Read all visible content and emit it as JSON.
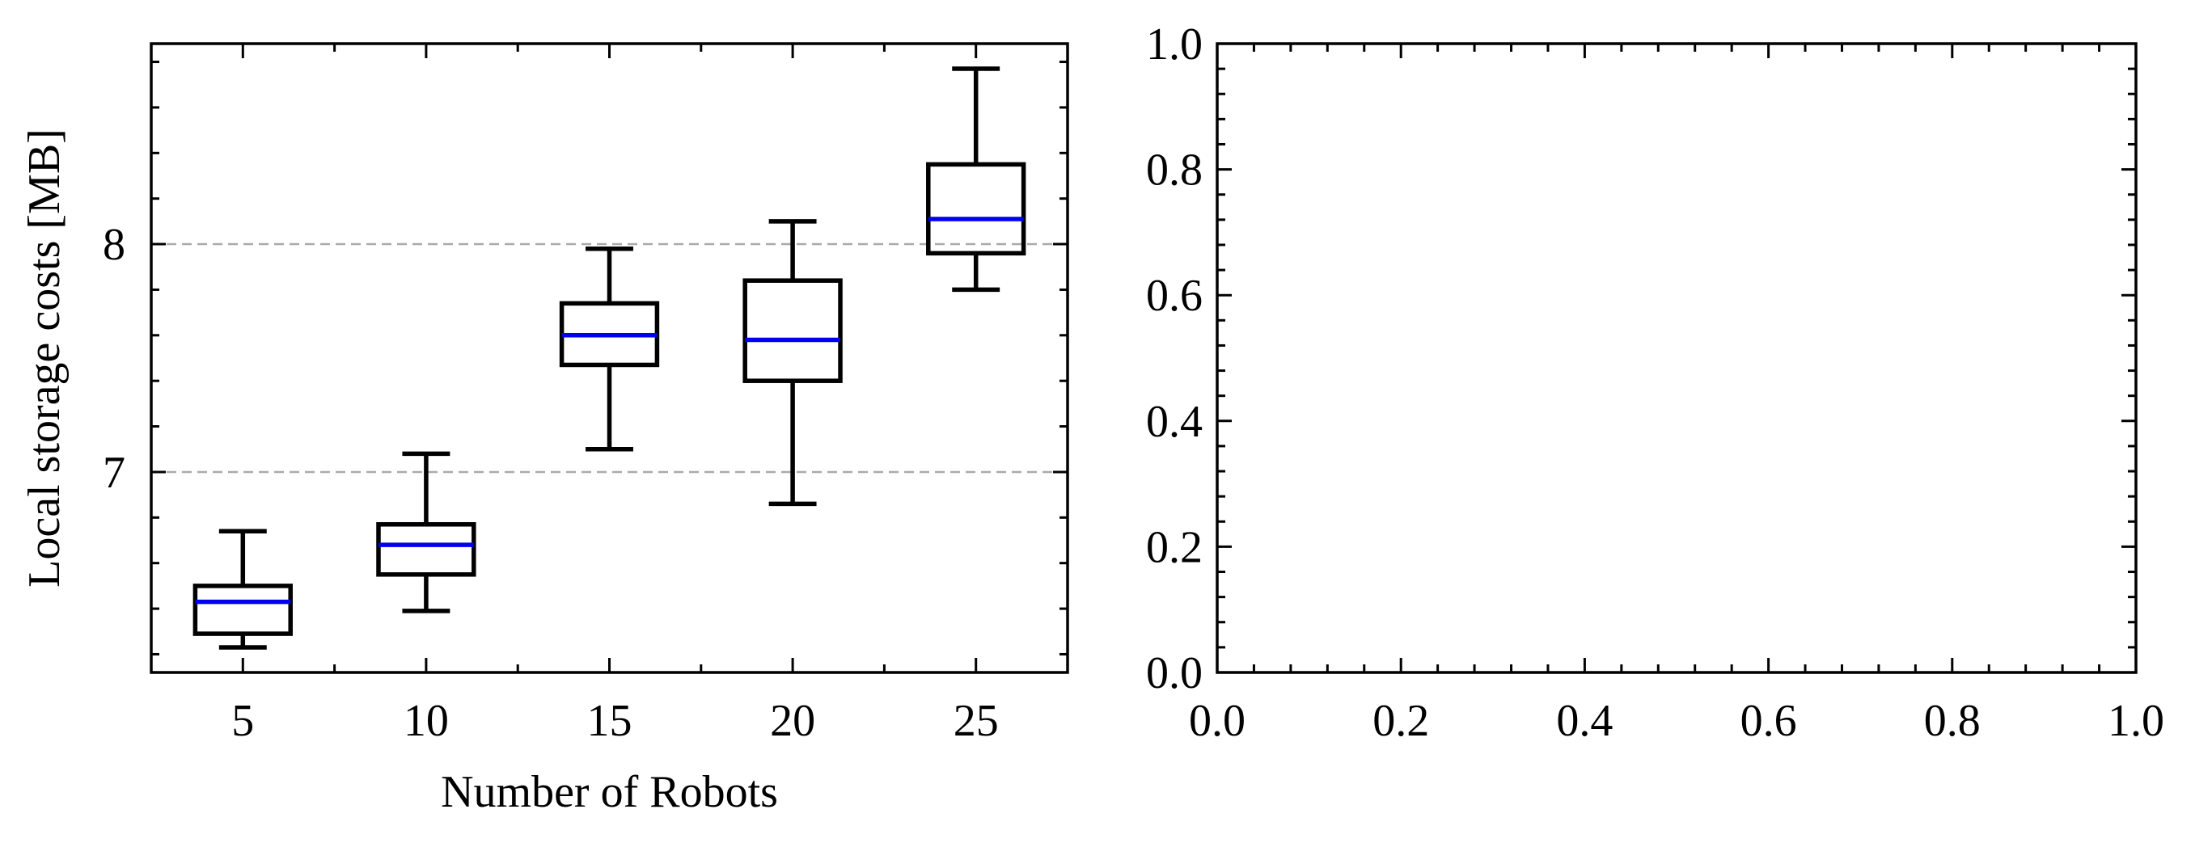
{
  "chart_data": [
    {
      "type": "box",
      "xlabel": "Number of Robots",
      "ylabel": "Local storage costs [MB]",
      "categories": [
        "5",
        "10",
        "15",
        "20",
        "25"
      ],
      "x": [
        5,
        10,
        15,
        20,
        25
      ],
      "xlim": [
        2.5,
        27.5
      ],
      "ylim": [
        6.12,
        8.88
      ],
      "yticks": [
        7,
        8
      ],
      "ytick_labels": [
        "7",
        "8"
      ],
      "grid": "horizontal dashed at major y ticks",
      "boxes": [
        {
          "x": 5,
          "whisker_low": 6.23,
          "q1": 6.29,
          "median": 6.43,
          "q3": 6.5,
          "whisker_high": 6.74
        },
        {
          "x": 10,
          "whisker_low": 6.39,
          "q1": 6.55,
          "median": 6.68,
          "q3": 6.77,
          "whisker_high": 7.08
        },
        {
          "x": 15,
          "whisker_low": 7.1,
          "q1": 7.47,
          "median": 7.6,
          "q3": 7.74,
          "whisker_high": 7.98
        },
        {
          "x": 20,
          "whisker_low": 6.86,
          "q1": 7.4,
          "median": 7.58,
          "q3": 7.84,
          "whisker_high": 8.1
        },
        {
          "x": 25,
          "whisker_low": 7.8,
          "q1": 7.96,
          "median": 8.11,
          "q3": 8.35,
          "whisker_high": 8.77
        }
      ],
      "colors": {
        "box": "#000000",
        "median": "#0000ee",
        "grid": "#aaaaaa"
      }
    },
    {
      "type": "empty",
      "xlim": [
        0.0,
        1.0
      ],
      "ylim": [
        0.0,
        1.0
      ],
      "xtick_labels": [
        "0.0",
        "0.2",
        "0.4",
        "0.6",
        "0.8",
        "1.0"
      ],
      "ytick_labels": [
        "0.0",
        "0.2",
        "0.4",
        "0.6",
        "0.8",
        "1.0"
      ]
    }
  ]
}
